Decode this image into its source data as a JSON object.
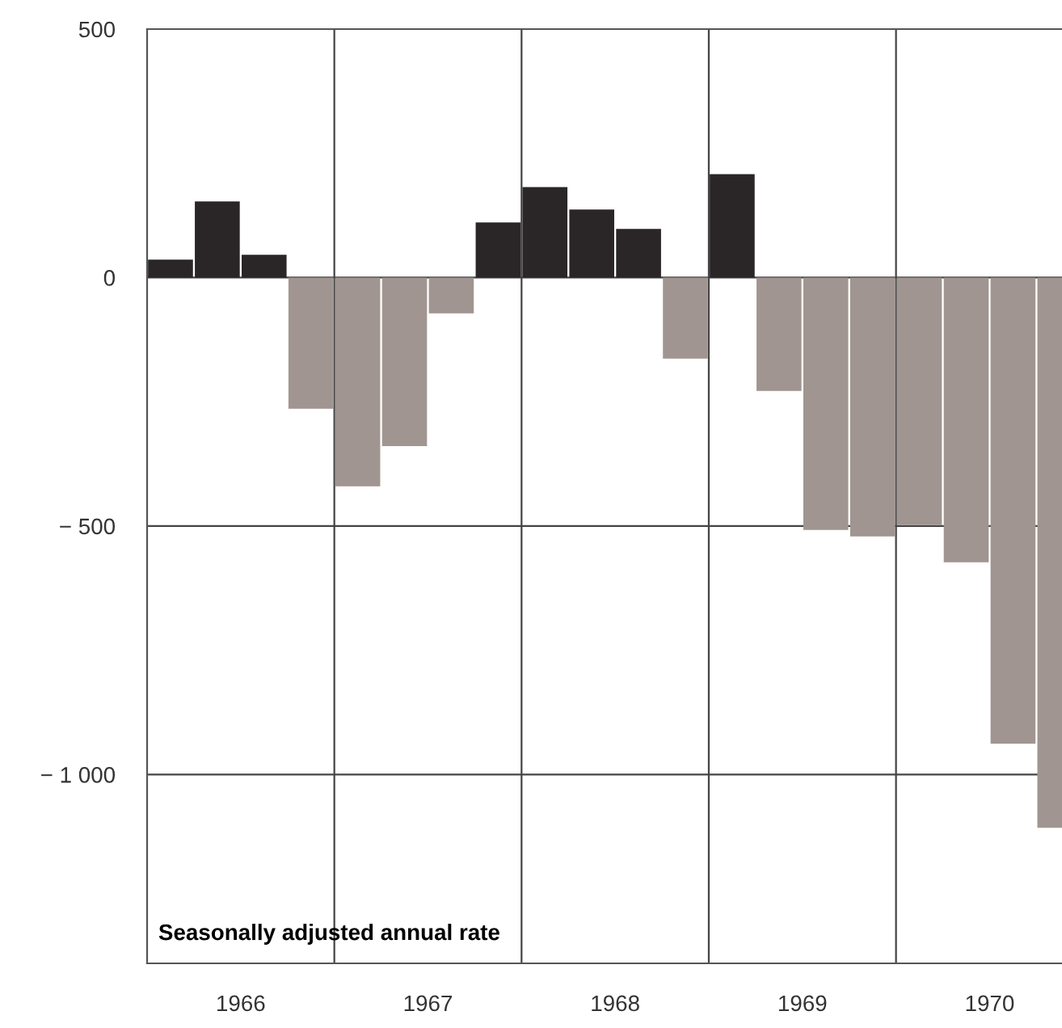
{
  "chart_data": {
    "type": "bar",
    "x": [
      1966.125,
      1966.375,
      1966.625,
      1966.875,
      1967.125,
      1967.375,
      1967.625,
      1967.875,
      1968.125,
      1968.375,
      1968.625,
      1968.875,
      1969.125,
      1969.375,
      1969.625,
      1969.875,
      1970.125,
      1970.375,
      1970.625,
      1970.875
    ],
    "values": [
      36,
      153,
      46,
      -264,
      -420,
      -339,
      -72,
      111,
      182,
      137,
      98,
      -163,
      208,
      -228,
      -508,
      -521,
      -498,
      -573,
      -938,
      -1107
    ],
    "colors": [
      "#2a2628",
      "#2a2628",
      "#2a2628",
      "#a09590",
      "#a09590",
      "#a09590",
      "#a09590",
      "#2a2628",
      "#2a2628",
      "#2a2628",
      "#2a2628",
      "#a09590",
      "#2a2628",
      "#a09590",
      "#a09590",
      "#a09590",
      "#a09590",
      "#a09590",
      "#a09590",
      "#a09590"
    ],
    "xlim": [
      1966,
      1971
    ],
    "xticks": [
      {
        "value": 1966.5,
        "label": "1966"
      },
      {
        "value": 1967.5,
        "label": "1967"
      },
      {
        "value": 1968.5,
        "label": "1968"
      },
      {
        "value": 1969.5,
        "label": "1969"
      },
      {
        "value": 1970.5,
        "label": "1970"
      }
    ],
    "ylim": [
      -1380,
      500
    ],
    "yticks": [
      500,
      0,
      {
        "value": -500,
        "label": "− 500"
      },
      {
        "value": -1000,
        "label": "− 1 000"
      }
    ],
    "grid": "y",
    "ref_lines": [
      {
        "axis": "x",
        "value": 1967
      },
      {
        "axis": "x",
        "value": 1968
      },
      {
        "axis": "x",
        "value": 1969
      },
      {
        "axis": "x",
        "value": 1970
      }
    ],
    "annotations": [
      "Seasonally adjusted annual rate"
    ]
  }
}
